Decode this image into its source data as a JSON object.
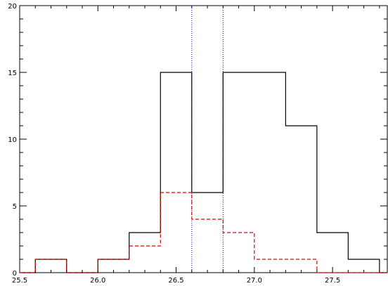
{
  "chart_data": {
    "type": "histogram",
    "title": "",
    "xlabel": "",
    "ylabel": "",
    "xlim": [
      25.5,
      27.85
    ],
    "ylim": [
      0,
      20
    ],
    "grid": false,
    "legend": "none",
    "x_ticks": [
      25.5,
      26.0,
      26.5,
      27.0,
      27.5
    ],
    "x_tick_labels": [
      "25.5",
      "26.0",
      "26.5",
      "27.0",
      "27.5"
    ],
    "y_ticks": [
      0,
      5,
      10,
      15,
      20
    ],
    "y_tick_labels": [
      "0",
      "5",
      "10",
      "15",
      "20"
    ],
    "bin_edges": [
      25.6,
      25.8,
      26.0,
      26.2,
      26.4,
      26.6,
      26.8,
      27.0,
      27.2,
      27.4,
      27.6,
      27.8
    ],
    "series": [
      {
        "style": "solid",
        "color": "#000000",
        "values": [
          1,
          0,
          1,
          3,
          15,
          6,
          15,
          15,
          11,
          3,
          1
        ]
      },
      {
        "style": "dashed",
        "color": "#dd0000",
        "values": [
          1,
          0,
          1,
          2,
          6,
          4,
          3,
          1,
          1,
          0,
          0
        ]
      }
    ],
    "vertical_lines": [
      {
        "x": 26.6,
        "color": "#0000cc",
        "style": "dotted"
      },
      {
        "x": 26.8,
        "color": "#0000cc",
        "style": "dotted"
      }
    ]
  }
}
